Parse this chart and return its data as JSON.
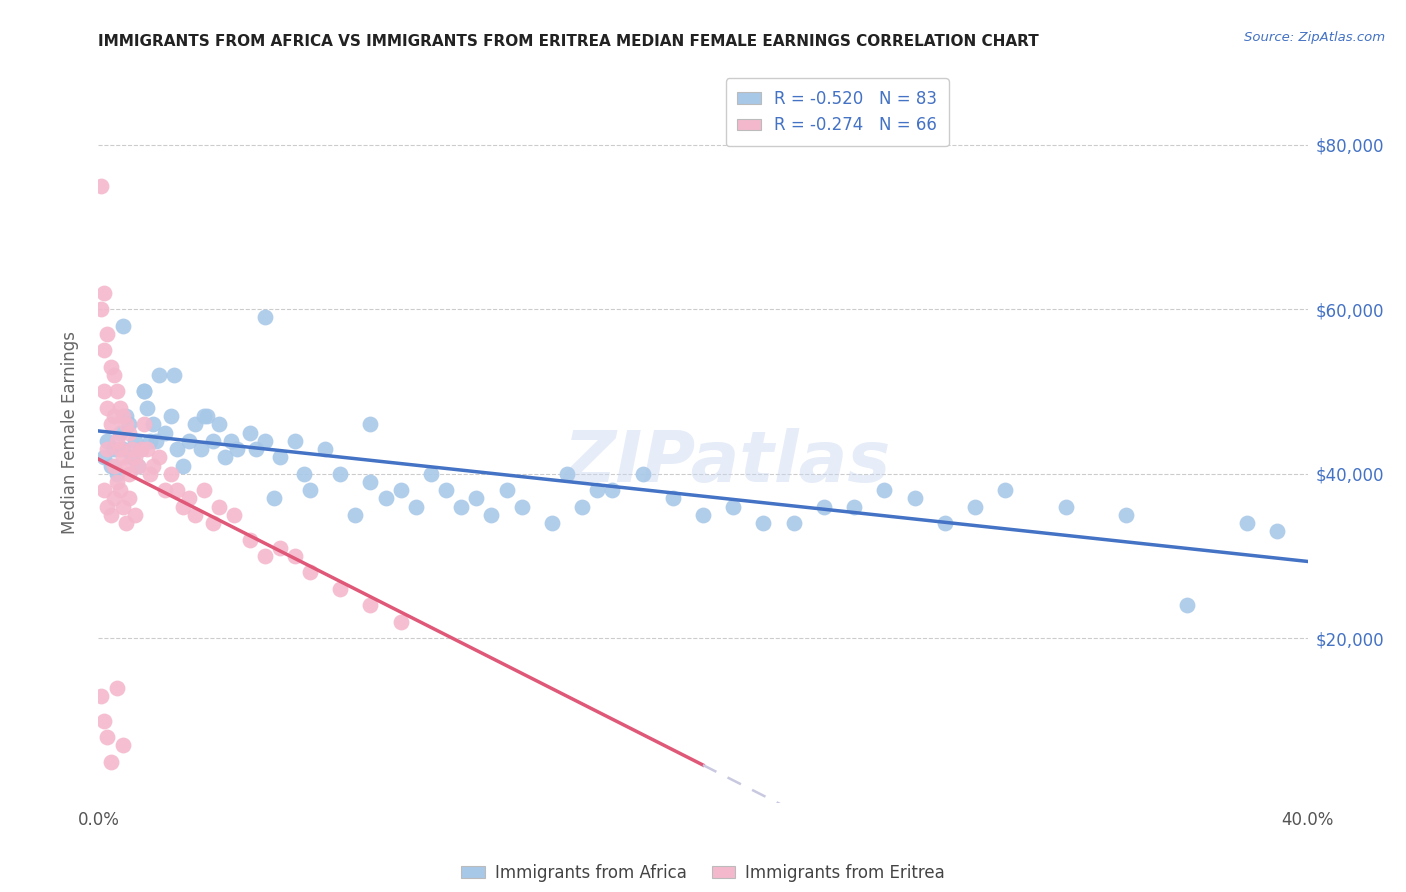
{
  "title": "IMMIGRANTS FROM AFRICA VS IMMIGRANTS FROM ERITREA MEDIAN FEMALE EARNINGS CORRELATION CHART",
  "source": "Source: ZipAtlas.com",
  "ylabel": "Median Female Earnings",
  "xlim": [
    0.0,
    0.4
  ],
  "ylim": [
    0,
    90000
  ],
  "yticks": [
    20000,
    40000,
    60000,
    80000
  ],
  "ytick_labels": [
    "$20,000",
    "$40,000",
    "$60,000",
    "$80,000"
  ],
  "xticks": [
    0.0,
    0.05,
    0.1,
    0.15,
    0.2,
    0.25,
    0.3,
    0.35,
    0.4
  ],
  "xtick_labels": [
    "0.0%",
    "",
    "",
    "",
    "",
    "",
    "",
    "",
    "40.0%"
  ],
  "legend1_label": "R = -0.520   N = 83",
  "legend2_label": "R = -0.274   N = 66",
  "color_blue": "#a8c8e8",
  "color_pink": "#f4b8cc",
  "color_blue_line": "#4472c4",
  "color_pink_line": "#e05878",
  "color_dashed_line": "#c8c8e0",
  "color_title": "#222222",
  "color_source": "#4472c4",
  "color_ylabel": "#666666",
  "color_ytick_right": "#4472c4",
  "watermark_text": "ZIPatlas",
  "africa_x": [
    0.002,
    0.003,
    0.004,
    0.005,
    0.006,
    0.007,
    0.008,
    0.009,
    0.01,
    0.011,
    0.012,
    0.013,
    0.014,
    0.015,
    0.016,
    0.017,
    0.018,
    0.019,
    0.02,
    0.022,
    0.024,
    0.026,
    0.028,
    0.03,
    0.032,
    0.034,
    0.036,
    0.038,
    0.04,
    0.042,
    0.044,
    0.046,
    0.05,
    0.052,
    0.055,
    0.058,
    0.06,
    0.065,
    0.068,
    0.07,
    0.075,
    0.08,
    0.085,
    0.09,
    0.095,
    0.1,
    0.105,
    0.11,
    0.115,
    0.12,
    0.125,
    0.13,
    0.135,
    0.14,
    0.15,
    0.155,
    0.16,
    0.165,
    0.17,
    0.18,
    0.19,
    0.2,
    0.21,
    0.22,
    0.23,
    0.24,
    0.25,
    0.26,
    0.27,
    0.28,
    0.29,
    0.3,
    0.32,
    0.34,
    0.36,
    0.38,
    0.39,
    0.008,
    0.015,
    0.025,
    0.035,
    0.055,
    0.09
  ],
  "africa_y": [
    42000,
    44000,
    41000,
    43000,
    40000,
    45000,
    43000,
    47000,
    46000,
    42000,
    44000,
    41000,
    43000,
    50000,
    48000,
    44000,
    46000,
    44000,
    52000,
    45000,
    47000,
    43000,
    41000,
    44000,
    46000,
    43000,
    47000,
    44000,
    46000,
    42000,
    44000,
    43000,
    45000,
    43000,
    44000,
    37000,
    42000,
    44000,
    40000,
    38000,
    43000,
    40000,
    35000,
    39000,
    37000,
    38000,
    36000,
    40000,
    38000,
    36000,
    37000,
    35000,
    38000,
    36000,
    34000,
    40000,
    36000,
    38000,
    38000,
    40000,
    37000,
    35000,
    36000,
    34000,
    34000,
    36000,
    36000,
    38000,
    37000,
    34000,
    36000,
    38000,
    36000,
    35000,
    24000,
    34000,
    33000,
    58000,
    50000,
    52000,
    47000,
    59000,
    46000
  ],
  "eritrea_x": [
    0.001,
    0.001,
    0.002,
    0.002,
    0.002,
    0.003,
    0.003,
    0.003,
    0.004,
    0.004,
    0.005,
    0.005,
    0.005,
    0.006,
    0.006,
    0.007,
    0.007,
    0.008,
    0.008,
    0.009,
    0.009,
    0.01,
    0.01,
    0.011,
    0.012,
    0.013,
    0.014,
    0.015,
    0.016,
    0.017,
    0.018,
    0.02,
    0.022,
    0.024,
    0.026,
    0.028,
    0.03,
    0.032,
    0.035,
    0.038,
    0.04,
    0.045,
    0.05,
    0.055,
    0.06,
    0.065,
    0.07,
    0.08,
    0.09,
    0.1,
    0.002,
    0.003,
    0.004,
    0.005,
    0.006,
    0.007,
    0.008,
    0.009,
    0.01,
    0.012,
    0.001,
    0.002,
    0.003,
    0.004,
    0.006,
    0.008
  ],
  "eritrea_y": [
    75000,
    60000,
    62000,
    55000,
    50000,
    57000,
    48000,
    43000,
    53000,
    46000,
    52000,
    47000,
    41000,
    50000,
    44000,
    48000,
    43000,
    47000,
    42000,
    46000,
    41000,
    45000,
    40000,
    43000,
    42000,
    41000,
    43000,
    46000,
    43000,
    40000,
    41000,
    42000,
    38000,
    40000,
    38000,
    36000,
    37000,
    35000,
    38000,
    34000,
    36000,
    35000,
    32000,
    30000,
    31000,
    30000,
    28000,
    26000,
    24000,
    22000,
    38000,
    36000,
    35000,
    37000,
    39000,
    38000,
    36000,
    34000,
    37000,
    35000,
    13000,
    10000,
    8000,
    5000,
    14000,
    7000
  ]
}
